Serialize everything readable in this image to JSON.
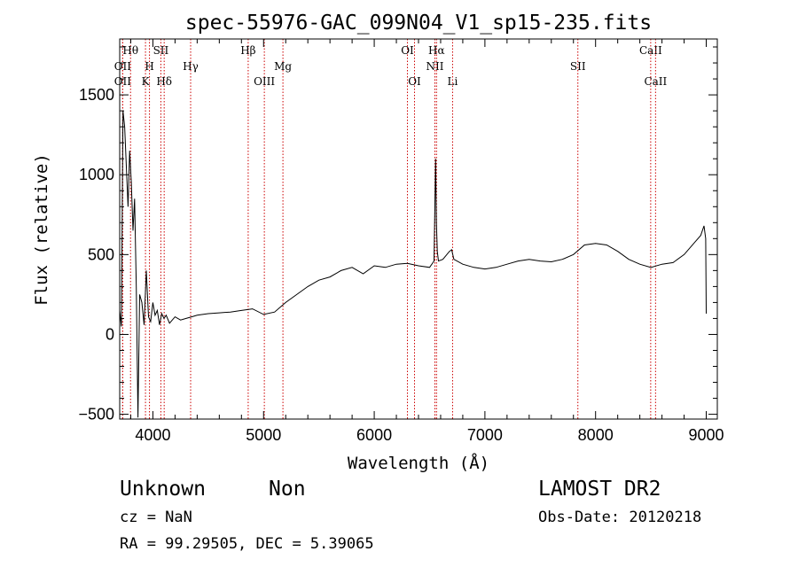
{
  "chart_data": {
    "type": "line",
    "title": "spec-55976-GAC_099N04_V1_sp15-235.fits",
    "xlabel": "Wavelength (Å)",
    "ylabel": "Flux (relative)",
    "xlim": [
      3700,
      9100
    ],
    "ylim": [
      -530,
      1850
    ],
    "x_ticks": [
      4000,
      5000,
      6000,
      7000,
      8000,
      9000
    ],
    "y_ticks": [
      -500,
      0,
      500,
      1000,
      1500
    ],
    "grid": false,
    "line_color": "#000000",
    "marker_color": "#cc0000",
    "series": [
      {
        "x": [
          3700,
          3715,
          3730,
          3745,
          3760,
          3775,
          3790,
          3805,
          3820,
          3835,
          3850,
          3865,
          3880,
          3900,
          3920,
          3940,
          3960,
          3980,
          4000,
          4020,
          4040,
          4060,
          4080,
          4100,
          4120,
          4150,
          4200,
          4250,
          4300,
          4350,
          4400,
          4500,
          4600,
          4700,
          4800,
          4900,
          5000,
          5100,
          5200,
          5300,
          5400,
          5500,
          5600,
          5700,
          5800,
          5900,
          6000,
          6100,
          6200,
          6300,
          6400,
          6500,
          6540,
          6555,
          6562,
          6570,
          6580,
          6620,
          6680,
          6700,
          6720,
          6800,
          6900,
          7000,
          7100,
          7200,
          7300,
          7400,
          7500,
          7600,
          7700,
          7800,
          7900,
          8000,
          8100,
          8200,
          8300,
          8400,
          8500,
          8600,
          8700,
          8800,
          8900,
          8950,
          8980,
          8995,
          9000
        ],
        "y": [
          150,
          50,
          1400,
          1300,
          1050,
          800,
          1150,
          950,
          650,
          850,
          300,
          -520,
          250,
          200,
          60,
          400,
          110,
          80,
          200,
          120,
          150,
          60,
          130,
          100,
          120,
          70,
          110,
          90,
          100,
          110,
          120,
          130,
          135,
          140,
          150,
          160,
          125,
          140,
          200,
          250,
          300,
          340,
          360,
          400,
          420,
          380,
          430,
          420,
          440,
          445,
          430,
          420,
          460,
          1100,
          700,
          520,
          460,
          470,
          520,
          530,
          470,
          440,
          420,
          410,
          420,
          440,
          460,
          470,
          460,
          455,
          470,
          500,
          560,
          570,
          560,
          520,
          470,
          440,
          420,
          440,
          450,
          500,
          580,
          620,
          680,
          600,
          130
        ]
      }
    ],
    "line_markers": [
      {
        "wavelength": 3727,
        "label": "OII",
        "row": 1
      },
      {
        "wavelength": 3727,
        "label": "OII",
        "row": 2
      },
      {
        "wavelength": 3798,
        "label": "Hθ",
        "row": 0
      },
      {
        "wavelength": 3933,
        "label": "K",
        "row": 2
      },
      {
        "wavelength": 3969,
        "label": "H",
        "row": 1
      },
      {
        "wavelength": 4072,
        "label": "SII",
        "row": 0
      },
      {
        "wavelength": 4102,
        "label": "Hδ",
        "row": 2
      },
      {
        "wavelength": 4341,
        "label": "Hγ",
        "row": 1
      },
      {
        "wavelength": 4861,
        "label": "Hβ",
        "row": 0
      },
      {
        "wavelength": 5007,
        "label": "OIII",
        "row": 2
      },
      {
        "wavelength": 5175,
        "label": "Mg",
        "row": 1
      },
      {
        "wavelength": 6300,
        "label": "OI",
        "row": 0
      },
      {
        "wavelength": 6364,
        "label": "OI",
        "row": 2
      },
      {
        "wavelength": 6548,
        "label": "NII",
        "row": 1
      },
      {
        "wavelength": 6563,
        "label": "Hα",
        "row": 0
      },
      {
        "wavelength": 6708,
        "label": "Li",
        "row": 2
      },
      {
        "wavelength": 7840,
        "label": "SII",
        "row": 1
      },
      {
        "wavelength": 8498,
        "label": "CaII",
        "row": 0
      },
      {
        "wavelength": 8542,
        "label": "CaII",
        "row": 2
      }
    ]
  },
  "info": {
    "object_class": "Unknown",
    "subclass": "Non",
    "survey": "LAMOST DR2",
    "cz": "cz = NaN",
    "obs_date": "Obs-Date: 20120218",
    "coords": "RA =  99.29505, DEC =   5.39065"
  }
}
